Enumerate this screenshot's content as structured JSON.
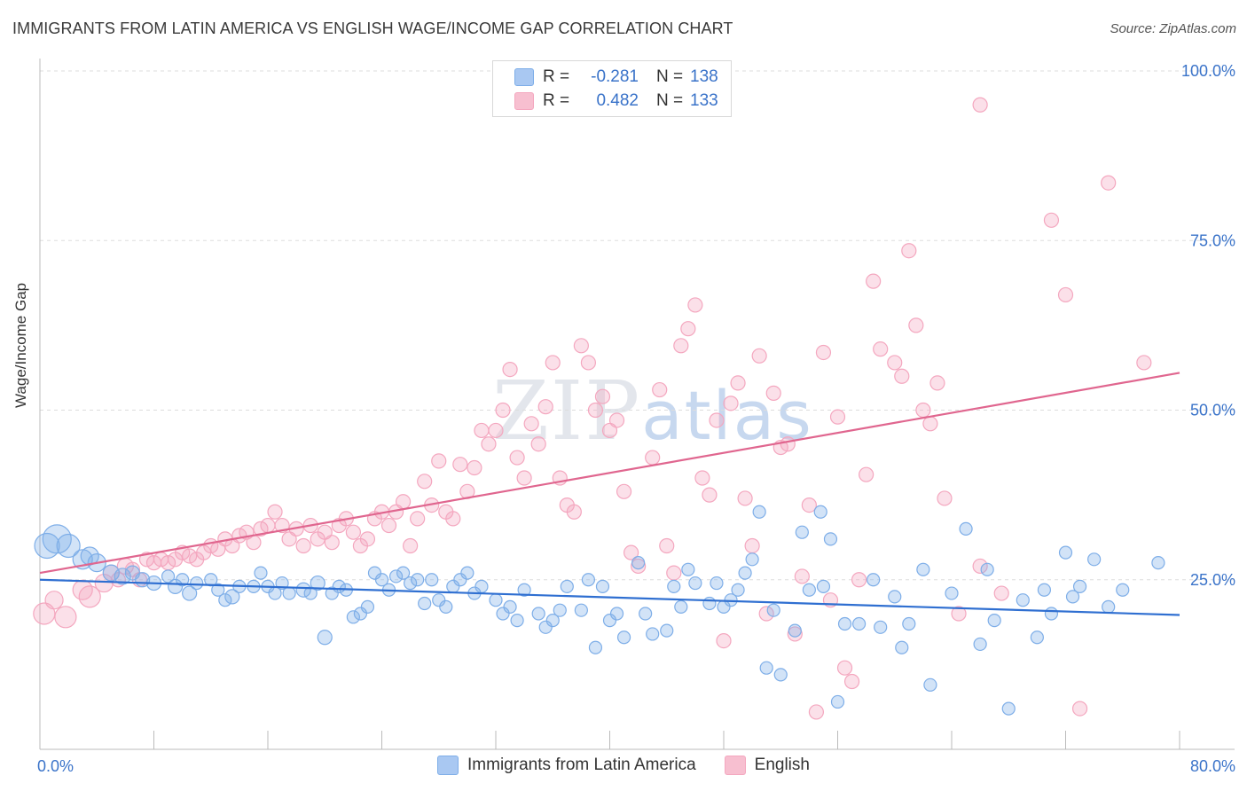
{
  "title": "IMMIGRANTS FROM LATIN AMERICA VS ENGLISH WAGE/INCOME GAP CORRELATION CHART",
  "source": "Source: ZipAtlas.com",
  "watermark": {
    "part1": "ZIP",
    "part2": "atlas"
  },
  "legend": {
    "rows": [
      {
        "r_label": "R =",
        "r_value": "-0.281",
        "n_label": "N =",
        "n_value": "138",
        "color": "#a9c8f2"
      },
      {
        "r_label": "R =",
        "r_value": "0.482",
        "n_label": "N =",
        "n_value": "133",
        "color": "#f7bfd0"
      }
    ]
  },
  "bottom_legend": [
    "Immigrants from Latin America",
    "English"
  ],
  "chart_data": {
    "type": "scatter",
    "title": "IMMIGRANTS FROM LATIN AMERICA VS ENGLISH WAGE/INCOME GAP CORRELATION CHART",
    "xlabel": "",
    "ylabel": "Wage/Income Gap",
    "xlim": [
      0,
      80
    ],
    "ylim": [
      0,
      100
    ],
    "x_ticks": [
      "0.0%",
      "80.0%"
    ],
    "y_ticks": [
      "25.0%",
      "50.0%",
      "75.0%",
      "100.0%"
    ],
    "grid": true,
    "legend_position": "top-center",
    "series": [
      {
        "name": "Immigrants from Latin America",
        "color": "#7eaee8",
        "line_color": "#2f6fd1",
        "trend": [
          [
            0,
            25.0
          ],
          [
            80,
            19.8
          ]
        ],
        "points": [
          [
            0.5,
            30,
            14
          ],
          [
            1.2,
            31,
            16
          ],
          [
            2,
            30,
            13
          ],
          [
            3,
            28,
            11
          ],
          [
            3.5,
            28.5,
            10
          ],
          [
            4,
            27.5,
            10
          ],
          [
            5,
            26,
            9
          ],
          [
            5.8,
            25.5,
            9
          ],
          [
            6.5,
            26,
            8
          ],
          [
            7.2,
            25,
            8
          ],
          [
            8,
            24.5,
            8
          ],
          [
            9,
            25.5,
            7
          ],
          [
            9.5,
            24,
            8
          ],
          [
            10,
            25,
            7
          ],
          [
            10.5,
            23,
            8
          ],
          [
            11,
            24.5,
            7
          ],
          [
            12,
            25,
            7
          ],
          [
            12.5,
            23.5,
            7
          ],
          [
            13,
            22,
            7
          ],
          [
            13.5,
            22.5,
            8
          ],
          [
            14,
            24,
            7
          ],
          [
            15,
            24,
            7
          ],
          [
            15.5,
            26,
            7
          ],
          [
            16,
            24,
            7
          ],
          [
            16.5,
            23,
            7
          ],
          [
            17,
            24.5,
            7
          ],
          [
            17.5,
            23,
            7
          ],
          [
            18.5,
            23.5,
            8
          ],
          [
            19,
            23,
            7
          ],
          [
            19.5,
            24.5,
            8
          ],
          [
            20,
            16.5,
            8
          ],
          [
            20.5,
            23,
            7
          ],
          [
            21,
            24,
            7
          ],
          [
            21.5,
            23.5,
            7
          ],
          [
            22,
            19.5,
            7
          ],
          [
            22.5,
            20,
            7
          ],
          [
            23,
            21,
            7
          ],
          [
            23.5,
            26,
            7
          ],
          [
            24,
            25,
            7
          ],
          [
            24.5,
            23.5,
            7
          ],
          [
            25,
            25.5,
            7
          ],
          [
            25.5,
            26,
            7
          ],
          [
            26,
            24.5,
            7
          ],
          [
            26.5,
            25,
            7
          ],
          [
            27,
            21.5,
            7
          ],
          [
            27.5,
            25,
            7
          ],
          [
            28,
            22,
            7
          ],
          [
            28.5,
            21,
            7
          ],
          [
            29,
            24,
            7
          ],
          [
            29.5,
            25,
            7
          ],
          [
            30,
            26,
            7
          ],
          [
            30.5,
            23,
            7
          ],
          [
            31,
            24,
            7
          ],
          [
            32,
            22,
            7
          ],
          [
            32.5,
            20,
            7
          ],
          [
            33,
            21,
            7
          ],
          [
            33.5,
            19,
            7
          ],
          [
            34,
            23.5,
            7
          ],
          [
            35,
            20,
            7
          ],
          [
            35.5,
            18,
            7
          ],
          [
            36,
            19,
            7
          ],
          [
            36.5,
            20.5,
            7
          ],
          [
            37,
            24,
            7
          ],
          [
            38,
            20.5,
            7
          ],
          [
            38.5,
            25,
            7
          ],
          [
            39,
            15,
            7
          ],
          [
            39.5,
            24,
            7
          ],
          [
            40,
            19,
            7
          ],
          [
            40.5,
            20,
            7
          ],
          [
            41,
            16.5,
            7
          ],
          [
            42,
            27.5,
            7
          ],
          [
            42.5,
            20,
            7
          ],
          [
            43,
            17,
            7
          ],
          [
            44,
            17.5,
            7
          ],
          [
            44.5,
            24,
            7
          ],
          [
            45,
            21,
            7
          ],
          [
            45.5,
            26.5,
            7
          ],
          [
            46,
            24.5,
            7
          ],
          [
            47,
            21.5,
            7
          ],
          [
            47.5,
            24.5,
            7
          ],
          [
            48,
            21,
            7
          ],
          [
            48.5,
            22,
            7
          ],
          [
            49,
            23.5,
            7
          ],
          [
            49.5,
            26,
            7
          ],
          [
            50,
            28,
            7
          ],
          [
            50.5,
            35,
            7
          ],
          [
            51,
            12,
            7
          ],
          [
            51.5,
            20.5,
            7
          ],
          [
            52,
            11,
            7
          ],
          [
            53,
            17.5,
            7
          ],
          [
            53.5,
            32,
            7
          ],
          [
            54,
            23.5,
            7
          ],
          [
            54.8,
            35,
            7
          ],
          [
            55,
            24,
            7
          ],
          [
            55.5,
            31,
            7
          ],
          [
            56,
            7,
            7
          ],
          [
            56.5,
            18.5,
            7
          ],
          [
            57.5,
            18.5,
            7
          ],
          [
            58.5,
            25,
            7
          ],
          [
            59,
            18,
            7
          ],
          [
            60,
            22.5,
            7
          ],
          [
            60.5,
            15,
            7
          ],
          [
            61,
            18.5,
            7
          ],
          [
            62,
            26.5,
            7
          ],
          [
            62.5,
            9.5,
            7
          ],
          [
            64,
            23,
            7
          ],
          [
            65,
            32.5,
            7
          ],
          [
            66,
            15.5,
            7
          ],
          [
            66.5,
            26.5,
            7
          ],
          [
            67,
            19,
            7
          ],
          [
            68,
            6,
            7
          ],
          [
            69,
            22,
            7
          ],
          [
            70,
            16.5,
            7
          ],
          [
            70.5,
            23.5,
            7
          ],
          [
            71,
            20,
            7
          ],
          [
            72,
            29,
            7
          ],
          [
            72.5,
            22.5,
            7
          ],
          [
            73,
            24,
            7
          ],
          [
            74,
            28,
            7
          ],
          [
            75,
            21,
            7
          ],
          [
            76,
            23.5,
            7
          ],
          [
            78.5,
            27.5,
            7
          ]
        ]
      },
      {
        "name": "English",
        "color": "#f4a7bf",
        "line_color": "#e0668f",
        "trend": [
          [
            0,
            26.0
          ],
          [
            80,
            55.5
          ]
        ],
        "points": [
          [
            0.3,
            20,
            12
          ],
          [
            1,
            22,
            10
          ],
          [
            1.8,
            19.5,
            12
          ],
          [
            3,
            23.5,
            11
          ],
          [
            3.5,
            22.5,
            12
          ],
          [
            4.5,
            24.5,
            10
          ],
          [
            5,
            26,
            9
          ],
          [
            5.5,
            25,
            8
          ],
          [
            6,
            27,
            9
          ],
          [
            6.5,
            26.5,
            8
          ],
          [
            7,
            25,
            8
          ],
          [
            7.5,
            28,
            8
          ],
          [
            8,
            27.5,
            8
          ],
          [
            8.5,
            28,
            8
          ],
          [
            9,
            27.5,
            8
          ],
          [
            9.5,
            28,
            8
          ],
          [
            10,
            29,
            8
          ],
          [
            10.5,
            28.5,
            8
          ],
          [
            11,
            28,
            8
          ],
          [
            11.5,
            29,
            8
          ],
          [
            12,
            30,
            8
          ],
          [
            12.5,
            29.5,
            8
          ],
          [
            13,
            31,
            8
          ],
          [
            13.5,
            30,
            8
          ],
          [
            14,
            31.5,
            8
          ],
          [
            14.5,
            32,
            8
          ],
          [
            15,
            30.5,
            8
          ],
          [
            15.5,
            32.5,
            8
          ],
          [
            16,
            33,
            8
          ],
          [
            16.5,
            35,
            8
          ],
          [
            17,
            33,
            8
          ],
          [
            17.5,
            31,
            8
          ],
          [
            18,
            32.5,
            8
          ],
          [
            18.5,
            30,
            8
          ],
          [
            19,
            33,
            8
          ],
          [
            19.5,
            31,
            8
          ],
          [
            20,
            32,
            8
          ],
          [
            20.5,
            30.5,
            8
          ],
          [
            21,
            33,
            8
          ],
          [
            21.5,
            34,
            8
          ],
          [
            22,
            32,
            8
          ],
          [
            22.5,
            30,
            8
          ],
          [
            23,
            31,
            8
          ],
          [
            23.5,
            34,
            8
          ],
          [
            24,
            35,
            8
          ],
          [
            24.5,
            33,
            8
          ],
          [
            25,
            35,
            8
          ],
          [
            25.5,
            36.5,
            8
          ],
          [
            26,
            30,
            8
          ],
          [
            26.5,
            34,
            8
          ],
          [
            27,
            39.5,
            8
          ],
          [
            27.5,
            36,
            8
          ],
          [
            28,
            42.5,
            8
          ],
          [
            28.5,
            35,
            8
          ],
          [
            29,
            34,
            8
          ],
          [
            29.5,
            42,
            8
          ],
          [
            30,
            38,
            8
          ],
          [
            30.5,
            41.5,
            8
          ],
          [
            31,
            47,
            8
          ],
          [
            31.5,
            45,
            8
          ],
          [
            32,
            47,
            8
          ],
          [
            32.5,
            50,
            8
          ],
          [
            33,
            56,
            8
          ],
          [
            33.5,
            43,
            8
          ],
          [
            34,
            40,
            8
          ],
          [
            34.5,
            48,
            8
          ],
          [
            35,
            45,
            8
          ],
          [
            35.5,
            50.5,
            8
          ],
          [
            36,
            57,
            8
          ],
          [
            36.5,
            40,
            8
          ],
          [
            37,
            36,
            8
          ],
          [
            37.5,
            35,
            8
          ],
          [
            38,
            59.5,
            8
          ],
          [
            38.5,
            57,
            8
          ],
          [
            39,
            50,
            8
          ],
          [
            39.5,
            52,
            8
          ],
          [
            40,
            47,
            8
          ],
          [
            40.5,
            48.5,
            8
          ],
          [
            41,
            38,
            8
          ],
          [
            41.5,
            29,
            8
          ],
          [
            42,
            27,
            8
          ],
          [
            43,
            43,
            8
          ],
          [
            43.5,
            53,
            8
          ],
          [
            44,
            30,
            8
          ],
          [
            44.5,
            26,
            8
          ],
          [
            45,
            59.5,
            8
          ],
          [
            45.5,
            62,
            8
          ],
          [
            46,
            65.5,
            8
          ],
          [
            46.5,
            40,
            8
          ],
          [
            47,
            37.5,
            8
          ],
          [
            47.5,
            48.5,
            8
          ],
          [
            48,
            16,
            8
          ],
          [
            48.5,
            51,
            8
          ],
          [
            49,
            54,
            8
          ],
          [
            49.5,
            37,
            8
          ],
          [
            50,
            30,
            8
          ],
          [
            50.5,
            58,
            8
          ],
          [
            51,
            20,
            8
          ],
          [
            51.5,
            52.5,
            8
          ],
          [
            52,
            44.5,
            8
          ],
          [
            52.5,
            45,
            8
          ],
          [
            53,
            17,
            8
          ],
          [
            53.5,
            25.5,
            8
          ],
          [
            54,
            36,
            8
          ],
          [
            54.5,
            5.5,
            8
          ],
          [
            55,
            58.5,
            8
          ],
          [
            55.5,
            22,
            8
          ],
          [
            56,
            49,
            8
          ],
          [
            56.5,
            12,
            8
          ],
          [
            57,
            10,
            8
          ],
          [
            57.5,
            25,
            8
          ],
          [
            58,
            40.5,
            8
          ],
          [
            58.5,
            69,
            8
          ],
          [
            59,
            59,
            8
          ],
          [
            60,
            57,
            8
          ],
          [
            60.5,
            55,
            8
          ],
          [
            61,
            73.5,
            8
          ],
          [
            61.5,
            62.5,
            8
          ],
          [
            62,
            50,
            8
          ],
          [
            62.5,
            48,
            8
          ],
          [
            63,
            54,
            8
          ],
          [
            63.5,
            37,
            8
          ],
          [
            64.5,
            20,
            8
          ],
          [
            66,
            27,
            8
          ],
          [
            67.5,
            23,
            8
          ],
          [
            71,
            78,
            8
          ],
          [
            72,
            67,
            8
          ],
          [
            73,
            6,
            8
          ],
          [
            75,
            83.5,
            8
          ],
          [
            77.5,
            57,
            8
          ],
          [
            66,
            95,
            8
          ]
        ]
      }
    ]
  }
}
